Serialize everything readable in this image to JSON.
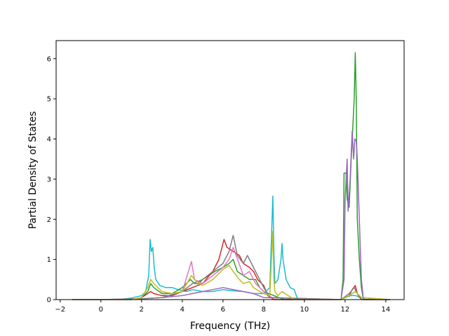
{
  "chart_data": {
    "type": "line",
    "title": "",
    "xlabel": "Frequency (THz)",
    "ylabel": "Partial Density of States",
    "xlim": [
      -2.2,
      14.9
    ],
    "ylim": [
      0,
      6.45
    ],
    "xticks": [
      -2,
      0,
      2,
      4,
      6,
      8,
      10,
      12,
      14
    ],
    "yticks": [
      0,
      1,
      2,
      3,
      4,
      5,
      6
    ],
    "xtick_labels": [
      "−2",
      "0",
      "2",
      "4",
      "6",
      "8",
      "10",
      "12",
      "14"
    ],
    "ytick_labels": [
      "0",
      "1",
      "2",
      "3",
      "4",
      "5",
      "6"
    ],
    "grid": false,
    "legend": "none",
    "series": [
      {
        "color": "#17becf",
        "x": [
          -1.4,
          0.0,
          1.0,
          1.5,
          2.0,
          2.2,
          2.35,
          2.42,
          2.48,
          2.55,
          2.62,
          2.7,
          2.9,
          3.2,
          3.5,
          3.8,
          4.2,
          4.5,
          5.0,
          5.5,
          6.0,
          6.5,
          7.0,
          7.5,
          8.0,
          8.3,
          8.45,
          8.5,
          8.55,
          8.7,
          8.85,
          8.9,
          8.95,
          9.1,
          9.3,
          9.5,
          9.6,
          9.7,
          11.8,
          12.0,
          12.3,
          12.5,
          12.8,
          13.0,
          14.2
        ],
        "y": [
          0,
          0,
          0.01,
          0.04,
          0.1,
          0.2,
          0.6,
          1.5,
          1.2,
          1.3,
          0.8,
          0.5,
          0.35,
          0.3,
          0.3,
          0.25,
          0.2,
          0.25,
          0.2,
          0.2,
          0.25,
          0.22,
          0.2,
          0.15,
          0.15,
          0.3,
          2.58,
          1.2,
          0.4,
          0.5,
          1.0,
          1.4,
          1.0,
          0.5,
          0.3,
          0.25,
          0.1,
          0,
          0,
          0.05,
          0.1,
          0.1,
          0.05,
          0,
          0
        ]
      },
      {
        "color": "#2ca02c",
        "x": [
          -1.4,
          0.0,
          1.5,
          2.0,
          2.3,
          2.45,
          2.6,
          3.0,
          3.5,
          4.0,
          4.4,
          4.6,
          4.8,
          5.0,
          5.3,
          5.6,
          6.0,
          6.3,
          6.5,
          6.7,
          7.0,
          7.3,
          7.6,
          7.8,
          8.0,
          8.5,
          9.0,
          11.8,
          11.9,
          11.95,
          12.05,
          12.1,
          12.2,
          12.3,
          12.38,
          12.45,
          12.5,
          12.55,
          12.6,
          12.7,
          12.8,
          12.9,
          14.2
        ],
        "y": [
          0,
          0,
          0,
          0.05,
          0.2,
          0.4,
          0.3,
          0.15,
          0.15,
          0.3,
          0.5,
          0.4,
          0.4,
          0.5,
          0.6,
          0.7,
          0.8,
          0.9,
          1.0,
          0.7,
          0.6,
          0.5,
          0.5,
          0.3,
          0.2,
          0.1,
          0,
          0,
          0.5,
          3.15,
          3.15,
          2.5,
          2.3,
          3.5,
          4.3,
          5.0,
          6.15,
          5.0,
          2.0,
          1.0,
          0.3,
          0,
          0
        ]
      },
      {
        "color": "#d62728",
        "x": [
          -1.4,
          0.0,
          1.5,
          2.0,
          2.45,
          2.6,
          3.0,
          3.5,
          4.0,
          4.5,
          5.0,
          5.5,
          5.8,
          6.05,
          6.2,
          6.5,
          6.8,
          7.0,
          7.3,
          7.5,
          7.7,
          8.0,
          8.2,
          8.5,
          11.8,
          12.2,
          12.35,
          12.5,
          12.6,
          12.8,
          14.2
        ],
        "y": [
          0,
          0,
          0,
          0.05,
          0.2,
          0.15,
          0.1,
          0.1,
          0.2,
          0.3,
          0.4,
          0.7,
          1.0,
          1.5,
          1.3,
          1.2,
          1.1,
          0.9,
          0.8,
          0.7,
          0.5,
          0.35,
          0.1,
          0,
          0,
          0.1,
          0.25,
          0.35,
          0.15,
          0,
          0
        ]
      },
      {
        "color": "#9467bd",
        "x": [
          -1.4,
          0.0,
          2.0,
          3.0,
          4.0,
          4.5,
          5.0,
          5.5,
          6.0,
          6.5,
          7.0,
          7.5,
          8.0,
          11.8,
          11.95,
          12.0,
          12.1,
          12.15,
          12.25,
          12.35,
          12.42,
          12.48,
          12.55,
          12.6,
          12.7,
          12.8,
          12.9,
          14.2
        ],
        "y": [
          0,
          0,
          0.02,
          0.05,
          0.1,
          0.15,
          0.2,
          0.25,
          0.3,
          0.25,
          0.2,
          0.15,
          0.05,
          0,
          0.5,
          2.5,
          3.5,
          2.2,
          3.0,
          4.2,
          3.5,
          4.0,
          3.95,
          3.5,
          2.0,
          0.5,
          0,
          0
        ]
      },
      {
        "color": "#e377c2",
        "x": [
          -1.4,
          0.0,
          2.0,
          3.0,
          4.0,
          4.45,
          4.6,
          5.0,
          5.5,
          6.0,
          6.3,
          6.5,
          7.0,
          7.3,
          7.6,
          8.0,
          8.4,
          11.8,
          12.2,
          12.5,
          12.8,
          14.2
        ],
        "y": [
          0,
          0,
          0.02,
          0.05,
          0.2,
          0.95,
          0.5,
          0.4,
          0.6,
          0.8,
          1.0,
          1.3,
          0.6,
          0.7,
          0.4,
          0.2,
          0.05,
          0,
          0.1,
          0.2,
          0.05,
          0
        ]
      },
      {
        "color": "#7f7f7f",
        "x": [
          -1.4,
          0.0,
          2.0,
          3.0,
          4.0,
          4.5,
          5.0,
          5.5,
          6.0,
          6.3,
          6.5,
          6.7,
          7.0,
          7.2,
          7.5,
          7.8,
          8.0,
          8.3,
          11.8,
          12.2,
          12.45,
          12.7,
          14.2
        ],
        "y": [
          0,
          0,
          0.02,
          0.05,
          0.2,
          0.4,
          0.5,
          0.7,
          0.9,
          1.2,
          1.6,
          1.1,
          0.9,
          1.1,
          0.8,
          0.5,
          0.3,
          0.05,
          0,
          0.15,
          0.3,
          0.05,
          0
        ]
      },
      {
        "color": "#bcbd22",
        "x": [
          -1.4,
          0.0,
          1.5,
          2.0,
          2.3,
          2.45,
          2.6,
          3.0,
          3.5,
          4.0,
          4.45,
          4.6,
          5.0,
          5.5,
          6.0,
          6.3,
          6.5,
          6.8,
          7.0,
          7.3,
          7.5,
          7.8,
          8.0,
          8.3,
          8.45,
          8.5,
          8.55,
          8.7,
          8.9,
          9.2,
          9.5,
          11.8,
          12.2,
          12.5,
          12.8,
          14.2
        ],
        "y": [
          0,
          0,
          0,
          0.05,
          0.3,
          0.5,
          0.4,
          0.2,
          0.15,
          0.2,
          0.6,
          0.5,
          0.35,
          0.5,
          0.75,
          0.85,
          0.7,
          0.5,
          0.4,
          0.45,
          0.3,
          0.2,
          0.15,
          0.1,
          1.7,
          0.5,
          0.2,
          0.1,
          0.2,
          0.1,
          0,
          0,
          0.1,
          0.2,
          0.05,
          0
        ]
      }
    ]
  }
}
